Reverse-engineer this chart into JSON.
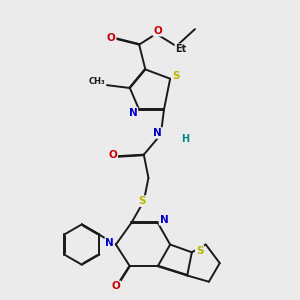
{
  "bg_color": "#ebebeb",
  "bond_color": "#1a1a1a",
  "bond_width": 1.4,
  "dbo": 0.018,
  "colors": {
    "S": "#b8b800",
    "N": "#0000cc",
    "O": "#cc0000",
    "H": "#008888",
    "C": "#1a1a1a"
  },
  "figsize": [
    3.0,
    3.0
  ],
  "dpi": 100
}
